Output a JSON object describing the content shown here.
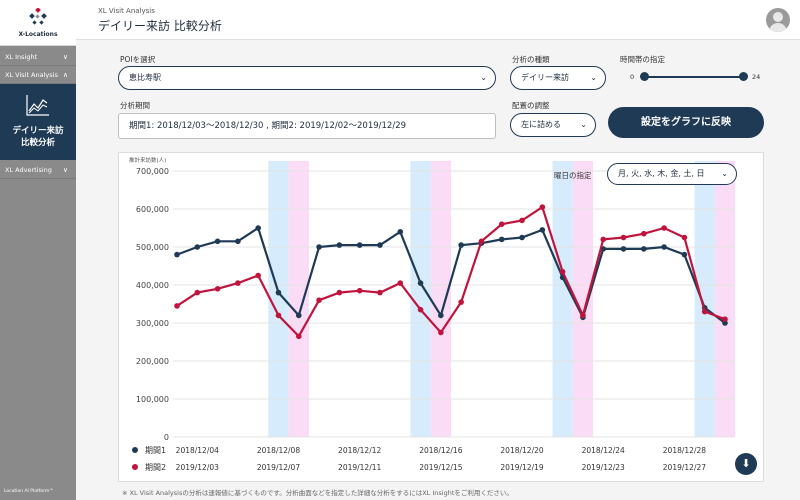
{
  "sidebar": {
    "logo_text": "X-Locations",
    "items": [
      {
        "label": "XL Insight",
        "chevron": "∨"
      },
      {
        "label": "XL Visit Analysis",
        "chevron": "∧"
      },
      {
        "label": "XL Advertising",
        "chevron": "∨"
      }
    ],
    "active_item": {
      "line1": "デイリー来訪",
      "line2": "比較分析",
      "icon": "line-chart-icon"
    },
    "footer": "Location AI Platform™"
  },
  "header": {
    "app_subtitle": "XL Visit Analysis",
    "title": "デイリー来訪 比較分析",
    "avatar_icon": "user-avatar-icon"
  },
  "controls": {
    "poi_label": "POIを選択",
    "poi_value": "恵比寿駅",
    "analysis_type_label": "分析の種類",
    "analysis_type_value": "デイリー来訪",
    "time_label": "時間帯の指定",
    "time_min": "0",
    "time_max": "24",
    "period_label": "分析期間",
    "period_value": "期間1: 2018/12/03〜2018/12/30 , 期間2: 2019/12/02〜2019/12/29",
    "align_label": "配置の調整",
    "align_value": "左に詰める",
    "apply_button": "設定をグラフに反映",
    "dow_label": "曜日の指定",
    "dow_value": "月, 火, 水, 木, 金, 土, 日"
  },
  "chart_data": {
    "type": "line",
    "ylabel": "推計来訪数(人)",
    "ylim": [
      0,
      700000
    ],
    "yticks": [
      "0",
      "100,000",
      "200,000",
      "300,000",
      "400,000",
      "500,000",
      "600,000",
      "700,000"
    ],
    "yvalues": [
      0,
      100000,
      200000,
      300000,
      400000,
      500000,
      600000,
      700000
    ],
    "grid": true,
    "legend_position": "bottom-left",
    "series": [
      {
        "name": "期間1",
        "color": "#1e3a55",
        "values": [
          480000,
          500000,
          515000,
          515000,
          550000,
          380000,
          320000,
          500000,
          505000,
          505000,
          505000,
          540000,
          405000,
          320000,
          505000,
          510000,
          520000,
          525000,
          545000,
          420000,
          315000,
          495000,
          495000,
          495000,
          500000,
          480000,
          340000,
          300000
        ]
      },
      {
        "name": "期間2",
        "color": "#c0143c",
        "values": [
          345000,
          380000,
          390000,
          405000,
          425000,
          320000,
          265000,
          360000,
          380000,
          385000,
          380000,
          405000,
          335000,
          275000,
          355000,
          515000,
          560000,
          570000,
          605000,
          435000,
          320000,
          520000,
          525000,
          535000,
          550000,
          525000,
          330000,
          310000
        ]
      }
    ],
    "x_labels_period1": [
      "2018/12/04",
      "2018/12/08",
      "2018/12/12",
      "2018/12/16",
      "2018/12/20",
      "2018/12/24",
      "2018/12/28"
    ],
    "x_labels_period2": [
      "2019/12/03",
      "2019/12/07",
      "2019/12/11",
      "2019/12/15",
      "2019/12/19",
      "2019/12/23",
      "2019/12/27"
    ],
    "x_label_indices": [
      1,
      5,
      9,
      13,
      17,
      21,
      25
    ],
    "highlight_period1_indices": [
      5,
      12,
      19,
      26
    ],
    "highlight_period2_indices": [
      6,
      13,
      20,
      27
    ],
    "highlight_period1_color": "#d6ebfb",
    "highlight_period2_color": "#fbdcf6"
  },
  "footnote": "※ XL Visit Analysisの分析は速報値に基づくものです。分析曲面などを指定した詳細な分析をするにはXL Insightをご利用ください。",
  "download_icon": "download-icon"
}
